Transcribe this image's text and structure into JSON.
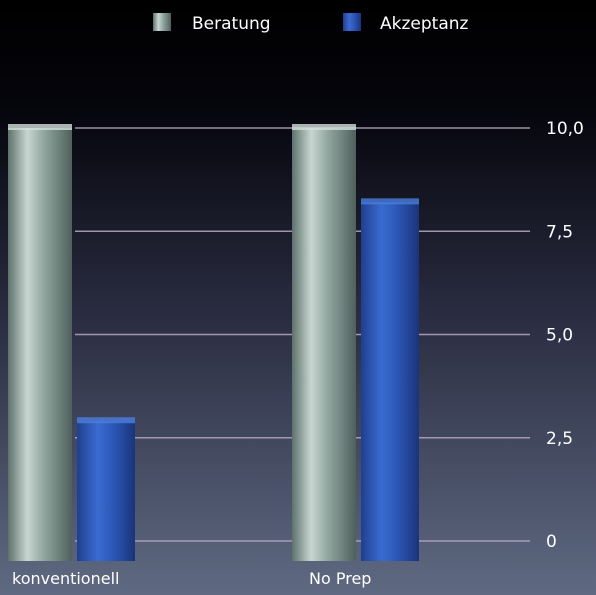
{
  "chart_data": {
    "type": "bar",
    "categories": [
      "konventionell",
      "No Prep"
    ],
    "series": [
      {
        "name": "Beratung",
        "values": [
          10.0,
          10.0
        ],
        "color": "#8fa8a0"
      },
      {
        "name": "Akzeptanz",
        "values": [
          2.9,
          8.2
        ],
        "color": "#2a55b8"
      }
    ],
    "ylim": [
      0,
      10
    ],
    "yticks": [
      "0",
      "2,5",
      "5,0",
      "7,5",
      "10,0"
    ],
    "ytick_values": [
      0,
      2.5,
      5,
      7.5,
      10
    ],
    "grid": true,
    "legend_position": "top-center",
    "background": {
      "top": "#000000",
      "bottom": "#5f6a82"
    }
  }
}
